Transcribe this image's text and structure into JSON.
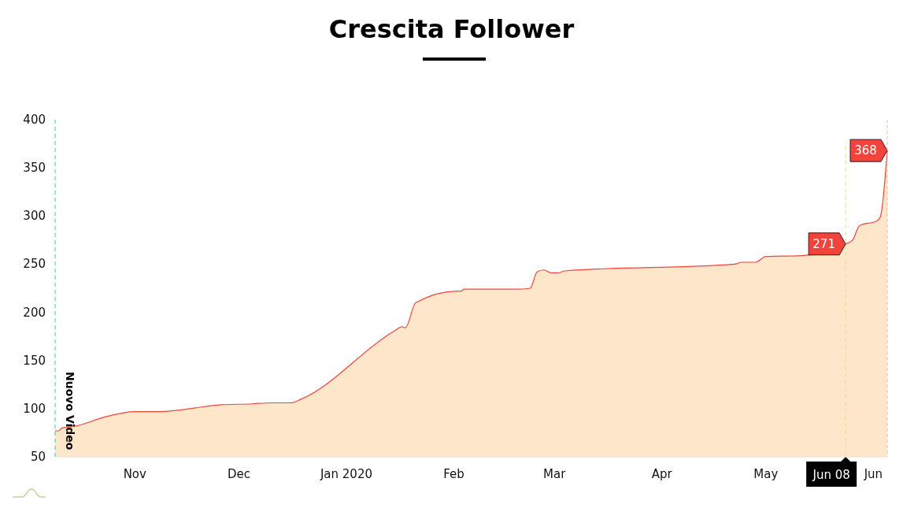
{
  "chart_data": {
    "type": "area",
    "title": "Crescita Follower",
    "x": [
      "2019-10-09",
      "2019-10-10",
      "2019-10-11",
      "2019-10-15",
      "2019-10-23",
      "2019-11-01",
      "2019-11-08",
      "2019-11-26",
      "2019-12-05",
      "2019-12-10",
      "2019-12-16",
      "2019-12-19",
      "2020-01-15",
      "2020-01-17",
      "2020-01-18",
      "2020-01-21",
      "2020-02-02",
      "2020-02-03",
      "2020-02-04",
      "2020-02-19",
      "2020-02-23",
      "2020-02-25",
      "2020-02-27",
      "2020-02-29",
      "2020-03-02",
      "2020-03-04",
      "2020-04-22",
      "2020-04-24",
      "2020-04-28",
      "2020-05-01",
      "2020-05-12",
      "2020-05-24",
      "2020-05-26",
      "2020-05-28",
      "2020-06-02",
      "2020-06-03",
      "2020-06-05"
    ],
    "series": [
      {
        "color": "#f4433b",
        "values": [
          77,
          77,
          80,
          82,
          91,
          97,
          97,
          104,
          105,
          106,
          106,
          110,
          181,
          185,
          184,
          210,
          222,
          222,
          224,
          224,
          225,
          242,
          244,
          241,
          241,
          243,
          250,
          252,
          252,
          258,
          259,
          271,
          275,
          290,
          295,
          299,
          368
        ],
        "value_labels": [
          null,
          null,
          null,
          null,
          null,
          null,
          null,
          null,
          null,
          null,
          null,
          null,
          null,
          null,
          null,
          null,
          null,
          null,
          null,
          null,
          null,
          null,
          null,
          null,
          null,
          null,
          null,
          null,
          null,
          null,
          null,
          "271",
          null,
          null,
          null,
          null,
          "368"
        ]
      }
    ],
    "xlim": [
      "2019-10-09",
      "2020-06-05"
    ],
    "xticks": [
      {
        "value": "2019-11-01",
        "label": "Nov"
      },
      {
        "value": "2019-12-01",
        "label": "Dec"
      },
      {
        "value": "2020-01-01",
        "label": "Jan 2020"
      },
      {
        "value": "2020-02-01",
        "label": "Feb"
      },
      {
        "value": "2020-03-01",
        "label": "Mar"
      },
      {
        "value": "2020-04-01",
        "label": "Apr"
      },
      {
        "value": "2020-05-01",
        "label": "May"
      },
      {
        "value": "2020-06-01",
        "label": "Jun"
      }
    ],
    "ylim": [
      50,
      400
    ],
    "yticks": [
      50,
      100,
      150,
      200,
      250,
      300,
      350,
      400
    ],
    "ref_lines": [
      {
        "axis": "x",
        "value": "2019-10-09",
        "label": "Nuovo Video",
        "color": "#3cc8a0",
        "line_style": "dashed"
      },
      {
        "axis": "x",
        "value": "2020-05-24",
        "label": "Jun 08",
        "color": "#d8e88a",
        "line_style": "dashed"
      }
    ],
    "grid": false
  }
}
